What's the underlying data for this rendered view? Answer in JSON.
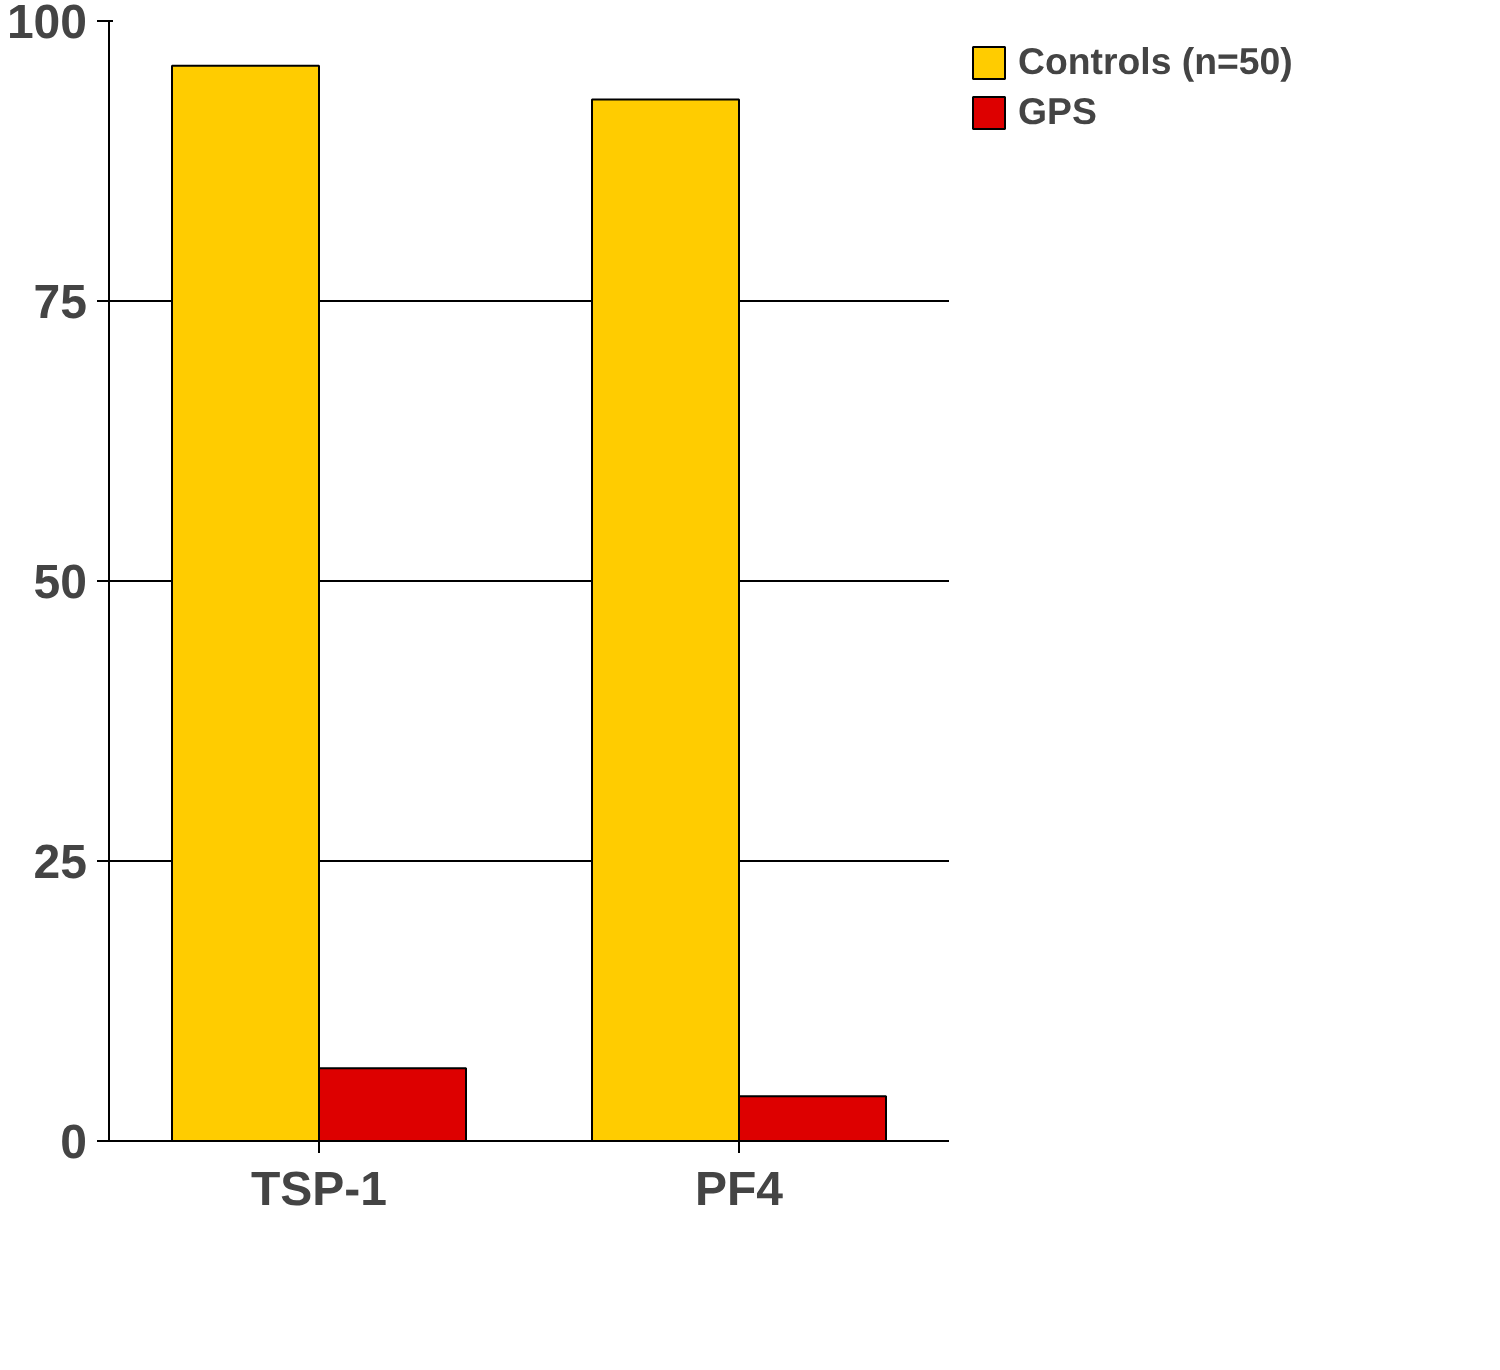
{
  "chart_data": {
    "type": "bar",
    "categories": [
      "TSP-1",
      "PF4"
    ],
    "series": [
      {
        "name": "Controls (n=50)",
        "color": "#ffcc00",
        "values": [
          96,
          93
        ]
      },
      {
        "name": "GPS",
        "color": "#dd0000",
        "values": [
          6.5,
          4
        ]
      }
    ],
    "ylim": [
      0,
      100
    ],
    "yticks": [
      0,
      25,
      50,
      75,
      100
    ],
    "grid": "y",
    "legend": "top right"
  }
}
